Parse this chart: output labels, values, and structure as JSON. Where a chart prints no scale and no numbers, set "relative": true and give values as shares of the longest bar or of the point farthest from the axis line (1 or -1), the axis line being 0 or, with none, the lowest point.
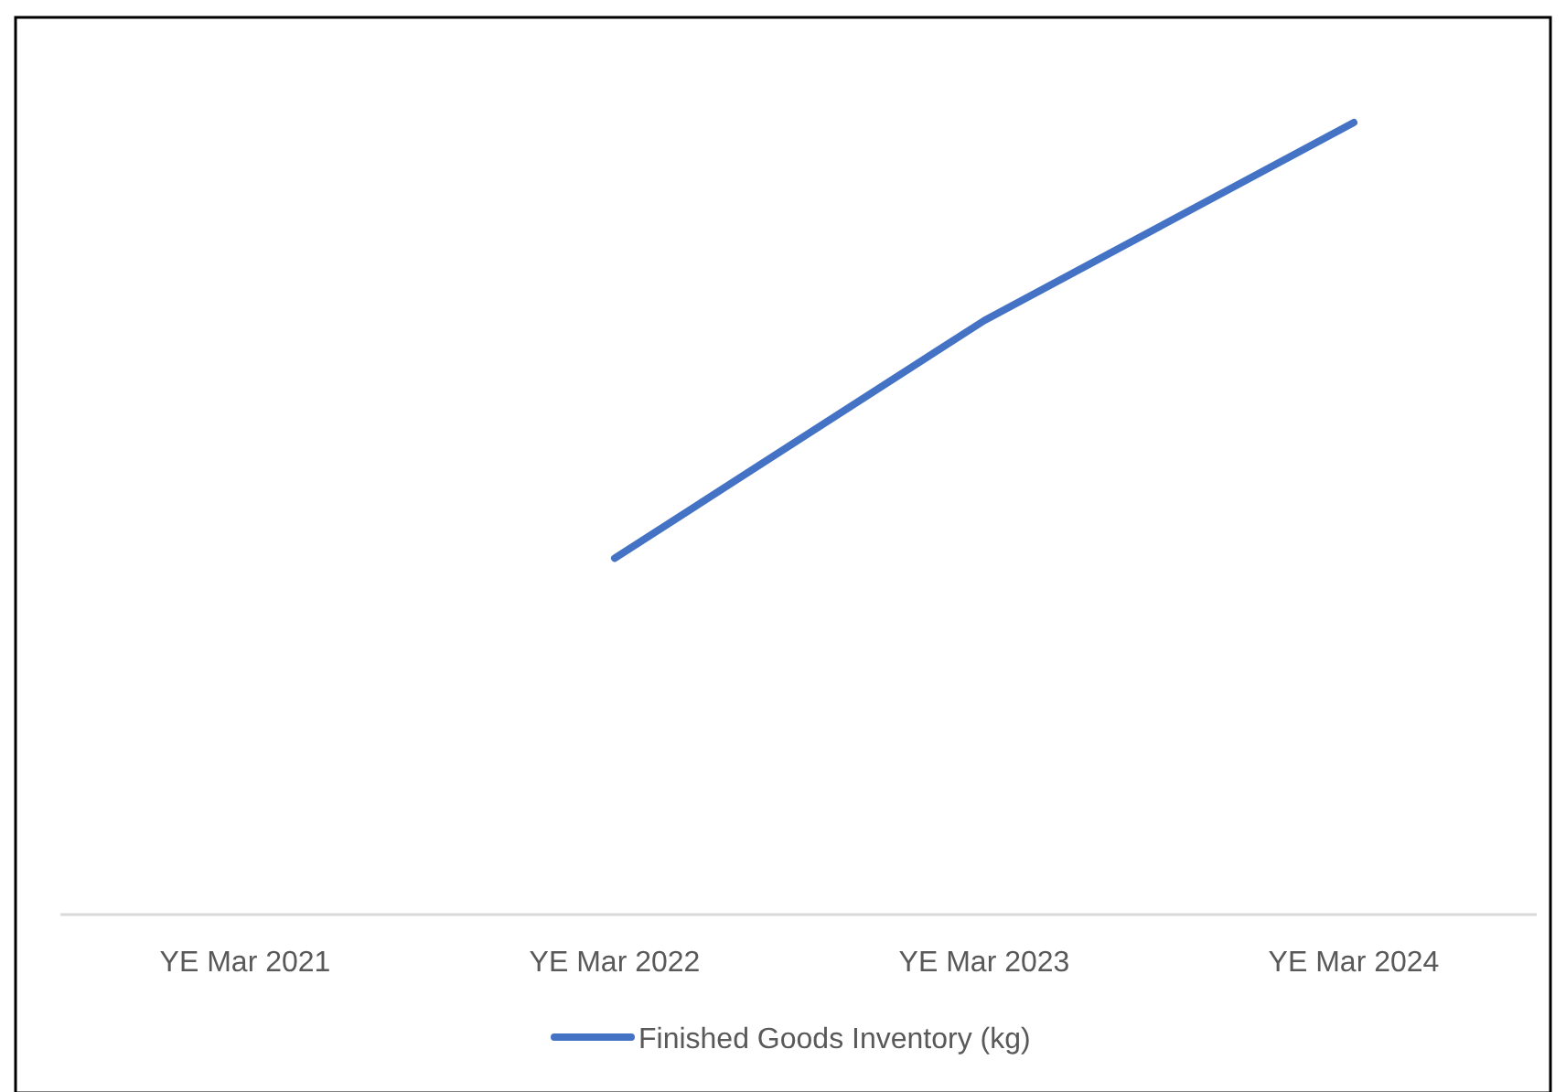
{
  "chart_data": {
    "type": "line",
    "relative": true,
    "categories": [
      "YE Mar 2021",
      "YE Mar 2022",
      "YE Mar 2023",
      "YE Mar 2024"
    ],
    "series": [
      {
        "name": "Finished Goods Inventory (kg)",
        "color": "#4472c4",
        "values": [
          null,
          0.45,
          0.75,
          1
        ]
      }
    ],
    "legend": "bottom",
    "marker": "none",
    "line_style": "solid"
  }
}
